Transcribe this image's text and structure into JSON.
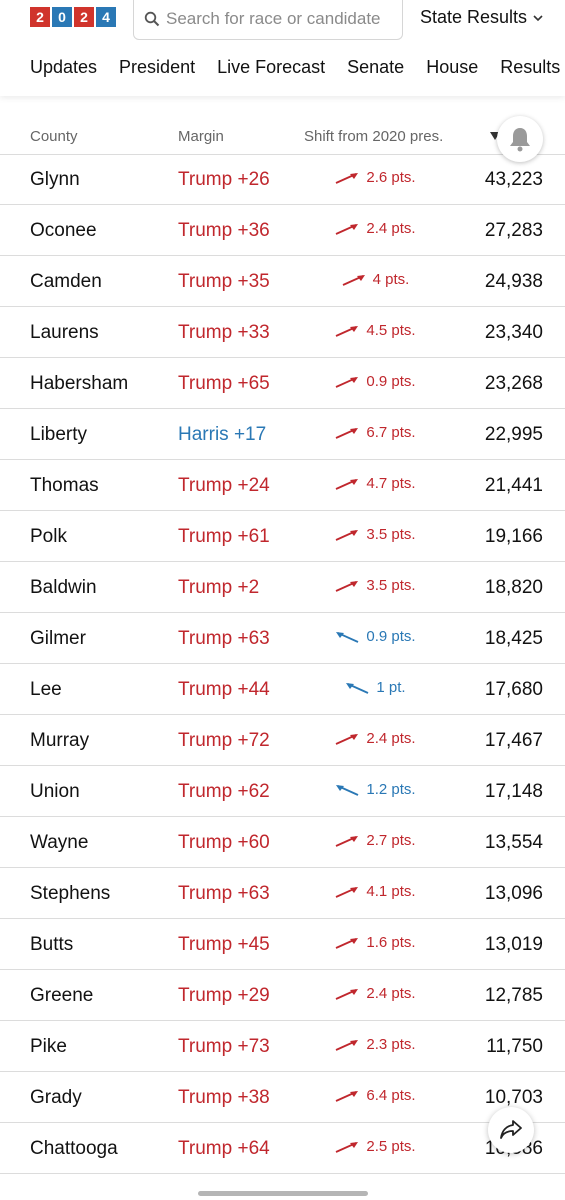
{
  "logo": {
    "digits": [
      "2",
      "0",
      "2",
      "4"
    ],
    "colors": [
      "#d0342c",
      "#2a78b5",
      "#d0342c",
      "#2a78b5"
    ]
  },
  "search": {
    "placeholder": "Search for race or candidate"
  },
  "state_results": {
    "label": "State Results"
  },
  "nav": [
    "Updates",
    "President",
    "Live Forecast",
    "Senate",
    "House",
    "Results T"
  ],
  "table": {
    "headers": {
      "county": "County",
      "margin": "Margin",
      "shift": "Shift from 2020 pres."
    },
    "rows": [
      {
        "county": "Glynn",
        "margin": "Trump +26",
        "party": "r",
        "shift": "2.6 pts.",
        "shift_dir": "r",
        "votes": "43,223"
      },
      {
        "county": "Oconee",
        "margin": "Trump +36",
        "party": "r",
        "shift": "2.4 pts.",
        "shift_dir": "r",
        "votes": "27,283"
      },
      {
        "county": "Camden",
        "margin": "Trump +35",
        "party": "r",
        "shift": "4 pts.",
        "shift_dir": "r",
        "votes": "24,938"
      },
      {
        "county": "Laurens",
        "margin": "Trump +33",
        "party": "r",
        "shift": "4.5 pts.",
        "shift_dir": "r",
        "votes": "23,340"
      },
      {
        "county": "Habersham",
        "margin": "Trump +65",
        "party": "r",
        "shift": "0.9 pts.",
        "shift_dir": "r",
        "votes": "23,268"
      },
      {
        "county": "Liberty",
        "margin": "Harris +17",
        "party": "d",
        "shift": "6.7 pts.",
        "shift_dir": "r",
        "votes": "22,995"
      },
      {
        "county": "Thomas",
        "margin": "Trump +24",
        "party": "r",
        "shift": "4.7 pts.",
        "shift_dir": "r",
        "votes": "21,441"
      },
      {
        "county": "Polk",
        "margin": "Trump +61",
        "party": "r",
        "shift": "3.5 pts.",
        "shift_dir": "r",
        "votes": "19,166"
      },
      {
        "county": "Baldwin",
        "margin": "Trump +2",
        "party": "r",
        "shift": "3.5 pts.",
        "shift_dir": "r",
        "votes": "18,820"
      },
      {
        "county": "Gilmer",
        "margin": "Trump +63",
        "party": "r",
        "shift": "0.9 pts.",
        "shift_dir": "d",
        "votes": "18,425"
      },
      {
        "county": "Lee",
        "margin": "Trump +44",
        "party": "r",
        "shift": "1 pt.",
        "shift_dir": "d",
        "votes": "17,680"
      },
      {
        "county": "Murray",
        "margin": "Trump +72",
        "party": "r",
        "shift": "2.4 pts.",
        "shift_dir": "r",
        "votes": "17,467"
      },
      {
        "county": "Union",
        "margin": "Trump +62",
        "party": "r",
        "shift": "1.2 pts.",
        "shift_dir": "d",
        "votes": "17,148"
      },
      {
        "county": "Wayne",
        "margin": "Trump +60",
        "party": "r",
        "shift": "2.7 pts.",
        "shift_dir": "r",
        "votes": "13,554"
      },
      {
        "county": "Stephens",
        "margin": "Trump +63",
        "party": "r",
        "shift": "4.1 pts.",
        "shift_dir": "r",
        "votes": "13,096"
      },
      {
        "county": "Butts",
        "margin": "Trump +45",
        "party": "r",
        "shift": "1.6 pts.",
        "shift_dir": "r",
        "votes": "13,019"
      },
      {
        "county": "Greene",
        "margin": "Trump +29",
        "party": "r",
        "shift": "2.4 pts.",
        "shift_dir": "r",
        "votes": "12,785"
      },
      {
        "county": "Pike",
        "margin": "Trump +73",
        "party": "r",
        "shift": "2.3 pts.",
        "shift_dir": "r",
        "votes": "11,750"
      },
      {
        "county": "Grady",
        "margin": "Trump +38",
        "party": "r",
        "shift": "6.4 pts.",
        "shift_dir": "r",
        "votes": "10,703"
      },
      {
        "county": "Chattooga",
        "margin": "Trump +64",
        "party": "r",
        "shift": "2.5 pts.",
        "shift_dir": "r",
        "votes": "10,586"
      }
    ]
  },
  "icons": {
    "search": "search-icon",
    "chevron": "chevron-down-icon",
    "bell": "bell-icon",
    "share": "share-icon",
    "sort": "sort-icon",
    "arrow": "shift-arrow-icon"
  },
  "colors": {
    "republican": "#c0272d",
    "democrat": "#2a78b5"
  }
}
